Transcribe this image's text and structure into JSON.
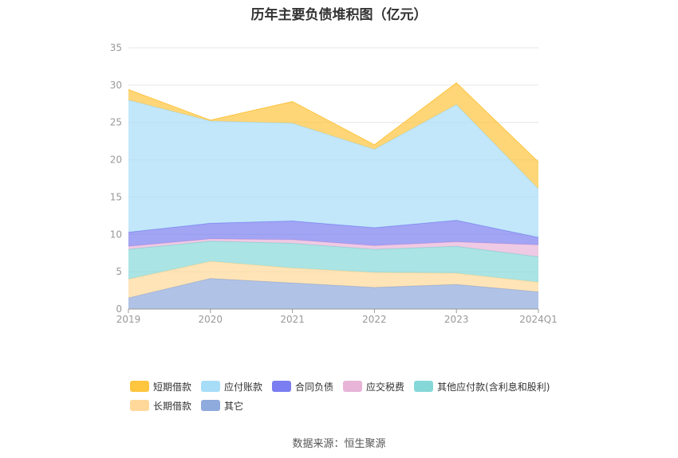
{
  "title": "历年主要负债堆积图（亿元）",
  "source": "数据来源：恒生聚源",
  "chart_data": {
    "type": "area",
    "stacked": true,
    "title": "历年主要负债堆积图（亿元）",
    "categories": [
      "2019",
      "2020",
      "2021",
      "2022",
      "2023",
      "2024Q1"
    ],
    "ylim": [
      0,
      35
    ],
    "yticks": [
      0,
      5,
      10,
      15,
      20,
      25,
      30,
      35
    ],
    "grid": true,
    "legend_position": "bottom",
    "series": [
      {
        "name": "其它",
        "color": "#8faadc",
        "values": [
          1.5,
          4.1,
          3.5,
          2.9,
          3.3,
          2.3
        ]
      },
      {
        "name": "长期借款",
        "color": "#ffd89a",
        "values": [
          2.5,
          2.3,
          2.0,
          2.0,
          1.5,
          1.3
        ]
      },
      {
        "name": "其他应付款(含利息和股利)",
        "color": "#86d8d8",
        "values": [
          4.0,
          2.7,
          3.3,
          3.1,
          3.6,
          3.4
        ]
      },
      {
        "name": "应交税费",
        "color": "#e8b4d8",
        "values": [
          0.4,
          0.3,
          0.5,
          0.5,
          0.6,
          1.6
        ]
      },
      {
        "name": "合同负债",
        "color": "#7a7ef0",
        "values": [
          1.9,
          2.1,
          2.5,
          2.4,
          2.9,
          1.0
        ]
      },
      {
        "name": "应付账款",
        "color": "#a8ddf8",
        "values": [
          17.7,
          13.7,
          13.1,
          10.5,
          15.5,
          6.5
        ]
      },
      {
        "name": "短期借款",
        "color": "#fec53f",
        "values": [
          1.4,
          0.1,
          2.9,
          0.6,
          2.9,
          3.6
        ]
      }
    ]
  },
  "legend": {
    "row1": [
      {
        "label": "短期借款",
        "color": "#fec53f"
      },
      {
        "label": "应付账款",
        "color": "#a8ddf8"
      },
      {
        "label": "合同负债",
        "color": "#7a7ef0"
      },
      {
        "label": "应交税费",
        "color": "#e8b4d8"
      },
      {
        "label": "其他应付款(含利息和股利)",
        "color": "#86d8d8"
      }
    ],
    "row2": [
      {
        "label": "长期借款",
        "color": "#ffd89a"
      },
      {
        "label": "其它",
        "color": "#8faadc"
      }
    ]
  }
}
